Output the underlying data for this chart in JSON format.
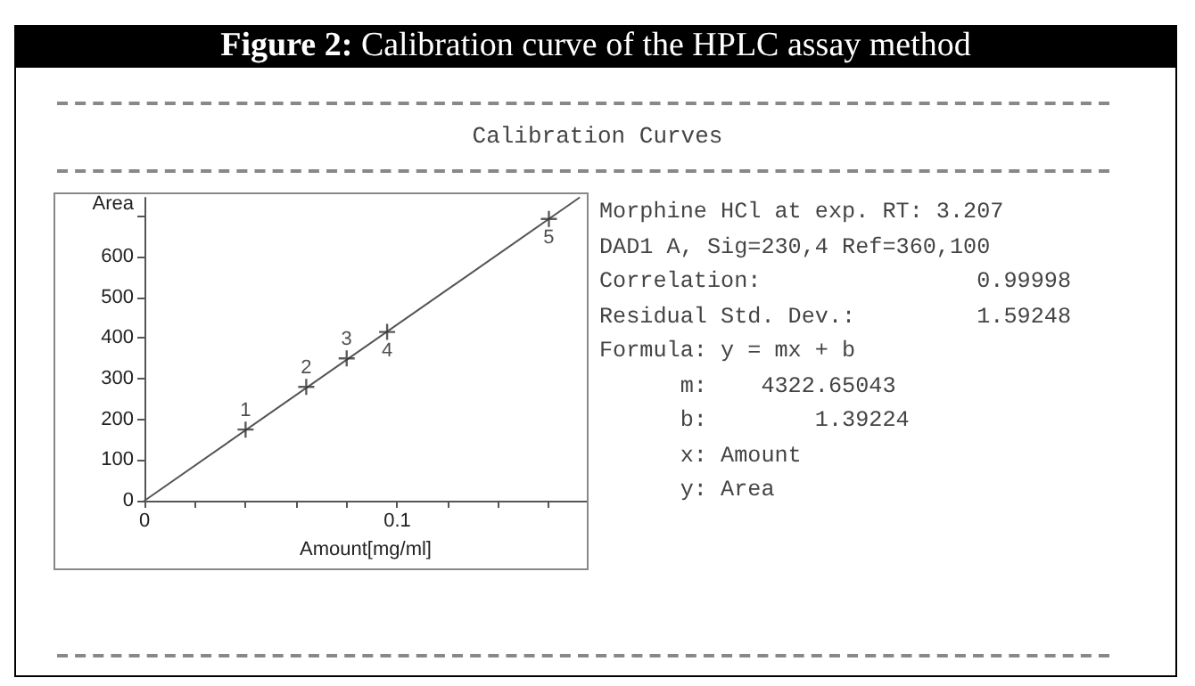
{
  "chart_data": {
    "type": "scatter",
    "title": "Figure 2: Calibration curve of the HPLC assay method",
    "subtitle": "Calibration Curves",
    "xlabel": "Amount[mg/ml]",
    "ylabel": "Area",
    "annotations": [
      "Morphine HCl at exp. RT: 3.207",
      "DAD1 A, Sig=230,4 Ref=360,100",
      "Correlation:                0.99998",
      "Residual Std. Dev.:         1.59248",
      "Formula: y = mx + b",
      "      m:    4322.65043",
      "      b:        1.39224",
      "      x: Amount",
      "      y: Area",
      {
        "text": "1",
        "x": 0.04,
        "y": 175
      },
      {
        "text": "2",
        "x": 0.064,
        "y": 280
      },
      {
        "text": "3",
        "x": 0.08,
        "y": 350
      },
      {
        "text": "4",
        "x": 0.096,
        "y": 415
      },
      {
        "text": "5",
        "x": 0.16,
        "y": 693
      }
    ],
    "series": [
      {
        "color": "#333333",
        "marker": "cross",
        "x": [
          0.04,
          0.064,
          0.08,
          0.096,
          0.16
        ],
        "values": [
          175,
          280,
          350,
          415,
          693
        ]
      },
      {
        "type": "line",
        "color": "#555555",
        "marker": "none",
        "line_style": "solid",
        "x": [
          0,
          0.172
        ],
        "values": [
          0,
          745
        ]
      }
    ],
    "xlim": [
      0,
      0.175
    ],
    "ylim": [
      0,
      745
    ],
    "xticks": [
      0,
      {
        "value": 0.02,
        "label": null
      },
      {
        "value": 0.04,
        "label": null
      },
      {
        "value": 0.06,
        "label": null
      },
      {
        "value": 0.08,
        "label": null
      },
      {
        "value": 0.1,
        "label": "0.1"
      },
      {
        "value": 0.12,
        "label": null
      },
      {
        "value": 0.14,
        "label": null
      },
      {
        "value": 0.16,
        "label": null
      }
    ],
    "yticks": [
      0,
      100,
      200,
      300,
      400,
      500,
      600,
      {
        "value": 700,
        "label": null
      }
    ],
    "grid": false
  }
}
